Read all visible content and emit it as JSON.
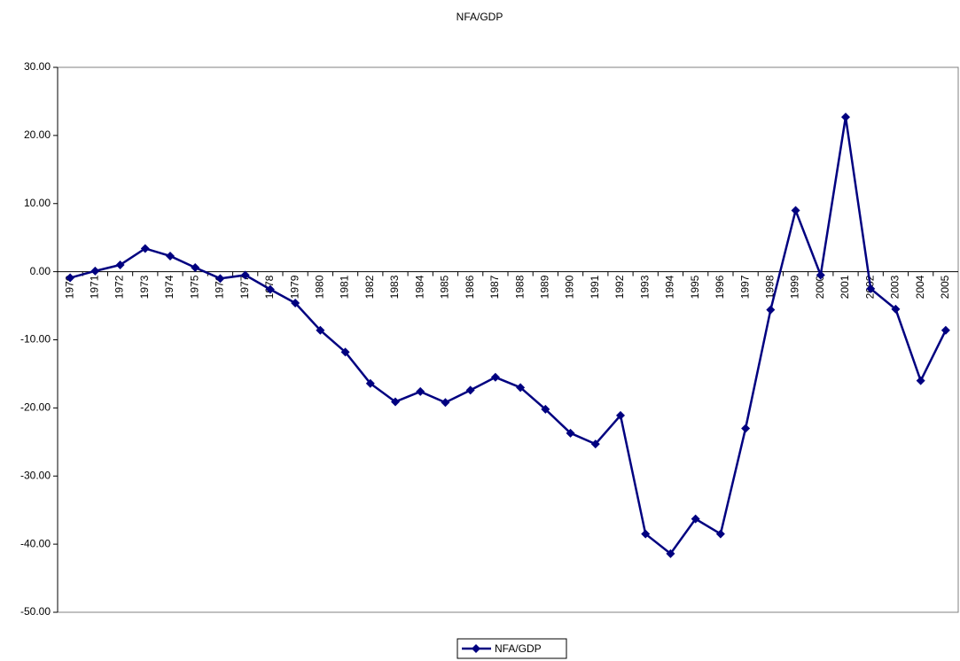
{
  "chart_data": {
    "type": "line",
    "title": "NFA/GDP",
    "categories": [
      "1970",
      "1971",
      "1972",
      "1973",
      "1974",
      "1975",
      "1976",
      "1977",
      "1978",
      "1979",
      "1980",
      "1981",
      "1982",
      "1983",
      "1984",
      "1985",
      "1986",
      "1987",
      "1988",
      "1989",
      "1990",
      "1991",
      "1992",
      "1993",
      "1994",
      "1995",
      "1996",
      "1997",
      "1998",
      "1999",
      "2000",
      "2001",
      "2002",
      "2003",
      "2004",
      "2005"
    ],
    "series": [
      {
        "name": "NFA/GDP",
        "color": "#000080",
        "values": [
          -0.9,
          0.1,
          1.0,
          3.4,
          2.3,
          0.6,
          -1.0,
          -0.5,
          -2.6,
          -4.6,
          -8.6,
          -11.8,
          -16.4,
          -19.1,
          -17.6,
          -19.2,
          -17.4,
          -15.5,
          -17.0,
          -20.2,
          -23.7,
          -25.3,
          -21.1,
          -38.5,
          -41.4,
          -36.3,
          -38.5,
          -23.0,
          -5.6,
          9.0,
          -0.5,
          22.7,
          -2.5,
          -5.5,
          -16.0,
          -8.6
        ]
      }
    ],
    "ylim": [
      -50,
      30
    ],
    "yticks": [
      {
        "value": -50,
        "label": "-50.00"
      },
      {
        "value": -40,
        "label": "-40.00"
      },
      {
        "value": -30,
        "label": "-30.00"
      },
      {
        "value": -20,
        "label": "-20.00"
      },
      {
        "value": -10,
        "label": "-10.00"
      },
      {
        "value": 0,
        "label": "0.00"
      },
      {
        "value": 10,
        "label": "10.00"
      },
      {
        "value": 20,
        "label": "20.00"
      },
      {
        "value": 30,
        "label": "30.00"
      }
    ],
    "legend": "bottom"
  }
}
